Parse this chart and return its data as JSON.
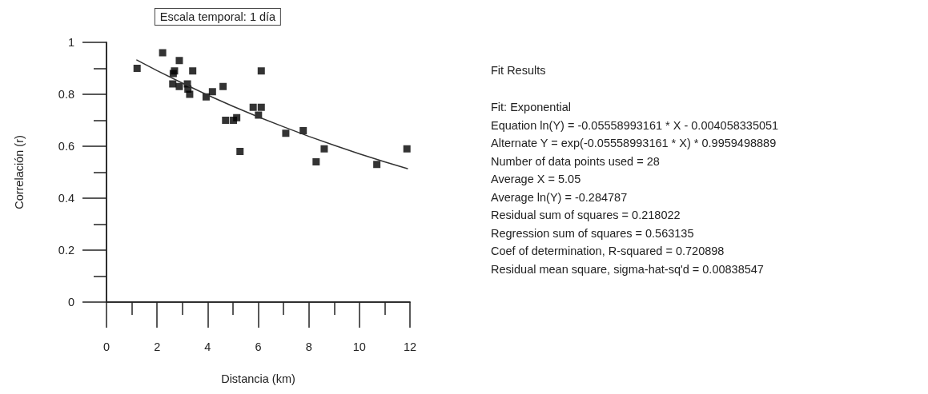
{
  "chart_data": {
    "type": "scatter",
    "xlabel": "Distancia (km)",
    "ylabel": "Correlación (r)",
    "annotations": [
      "Escala temporal: 1 día",
      "Fit Results",
      "Fit: Exponential",
      "Equation ln(Y) = -0.05558993161 * X - 0.004058335051",
      "Alternate Y = exp(-0.05558993161 * X) * 0.9959498889",
      "Number of data points used = 28",
      "Average X = 5.05",
      "Average ln(Y) = -0.284787",
      "Residual sum of squares = 0.218022",
      "Regression sum of squares = 0.563135",
      "Coef of determination, R-squared = 0.720898",
      "Residual mean square, sigma-hat-sq'd = 0.00838547"
    ],
    "series": [
      {
        "color": "#000000",
        "marker": "square",
        "x": [
          1.21,
          2.22,
          2.88,
          2.69,
          2.64,
          3.41,
          2.62,
          2.88,
          3.2,
          3.22,
          3.29,
          3.94,
          4.19,
          4.61,
          6.12,
          5.8,
          6.12,
          6.01,
          4.71,
          5.02,
          5.15,
          5.28,
          7.09,
          7.78,
          8.61,
          8.29,
          10.69,
          11.88
        ],
        "values": [
          0.9,
          0.96,
          0.93,
          0.89,
          0.88,
          0.89,
          0.84,
          0.83,
          0.84,
          0.82,
          0.8,
          0.79,
          0.81,
          0.83,
          0.89,
          0.75,
          0.75,
          0.72,
          0.7,
          0.7,
          0.71,
          0.58,
          0.65,
          0.66,
          0.59,
          0.54,
          0.53,
          0.59
        ]
      },
      {
        "type": "line",
        "color": "#333333",
        "marker": "none",
        "line_style": "solid",
        "x": [
          1.2,
          2,
          3,
          4,
          5,
          6,
          7,
          8,
          9,
          10,
          11,
          11.9
        ],
        "values": [
          0.932,
          0.891,
          0.843,
          0.797,
          0.754,
          0.713,
          0.675,
          0.638,
          0.604,
          0.571,
          0.54,
          0.514
        ]
      }
    ],
    "xlim": [
      0,
      12
    ],
    "xticks": [
      0,
      {
        "value": 1,
        "label": null
      },
      2,
      {
        "value": 3,
        "label": null
      },
      4,
      {
        "value": 5,
        "label": null
      },
      6,
      {
        "value": 7,
        "label": null
      },
      8,
      {
        "value": 9,
        "label": null
      },
      10,
      {
        "value": 11,
        "label": null
      },
      12
    ],
    "ylim": [
      0,
      1
    ],
    "yticks": [
      0,
      {
        "value": 0.1,
        "label": null
      },
      0.2,
      {
        "value": 0.3,
        "label": null
      },
      0.4,
      {
        "value": 0.5,
        "label": null
      },
      0.6,
      {
        "value": 0.7,
        "label": null
      },
      0.8,
      {
        "value": 0.9,
        "label": null
      },
      1
    ],
    "grid": false
  }
}
